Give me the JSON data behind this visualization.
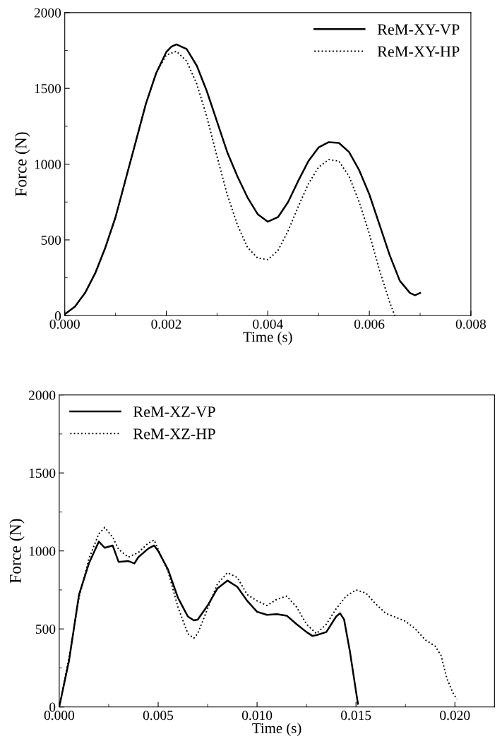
{
  "chart_data": [
    {
      "type": "line",
      "xlabel": "Time (s)",
      "ylabel": "Force (N)",
      "legend": "top right",
      "grid": false,
      "xlim": [
        0,
        0.008
      ],
      "ylim": [
        0,
        2000
      ],
      "xticks": [
        {
          "value": 0,
          "label": "0.000"
        },
        {
          "value": 0.002,
          "label": "0.002"
        },
        {
          "value": 0.004,
          "label": "0.004"
        },
        {
          "value": 0.006,
          "label": "0.006"
        },
        {
          "value": 0.008,
          "label": "0.008"
        }
      ],
      "yticks": [
        0,
        500,
        1000,
        1500,
        2000
      ],
      "series": [
        {
          "name": "ReM-XY-VP",
          "color": "#000000",
          "line_style": "solid",
          "x": [
            0,
            0.0002,
            0.0004,
            0.0006,
            0.0008,
            0.001,
            0.0012,
            0.0014,
            0.0016,
            0.0018,
            0.002,
            0.0021,
            0.0022,
            0.0024,
            0.0026,
            0.0028,
            0.003,
            0.0032,
            0.0034,
            0.0036,
            0.0038,
            0.004,
            0.0042,
            0.0044,
            0.0046,
            0.0048,
            0.005,
            0.0052,
            0.0054,
            0.0056,
            0.0058,
            0.006,
            0.0062,
            0.0064,
            0.0066,
            0.0068,
            0.0069,
            0.007
          ],
          "values": [
            10,
            60,
            150,
            280,
            450,
            650,
            900,
            1150,
            1400,
            1600,
            1740,
            1775,
            1790,
            1760,
            1650,
            1480,
            1280,
            1080,
            920,
            780,
            670,
            620,
            650,
            750,
            890,
            1020,
            1110,
            1145,
            1140,
            1080,
            960,
            800,
            600,
            400,
            230,
            150,
            135,
            150
          ]
        },
        {
          "name": "ReM-XY-HP",
          "color": "#000000",
          "line_style": "dotted",
          "x": [
            0,
            0.0002,
            0.0004,
            0.0006,
            0.0008,
            0.001,
            0.0012,
            0.0014,
            0.0016,
            0.0018,
            0.002,
            0.0022,
            0.0024,
            0.0026,
            0.0028,
            0.003,
            0.0032,
            0.0034,
            0.0036,
            0.0038,
            0.004,
            0.0042,
            0.0044,
            0.0046,
            0.0048,
            0.005,
            0.0052,
            0.0054,
            0.0056,
            0.0058,
            0.006,
            0.0062,
            0.0064,
            0.0065
          ],
          "values": [
            10,
            60,
            150,
            280,
            450,
            650,
            900,
            1150,
            1400,
            1600,
            1720,
            1745,
            1680,
            1530,
            1310,
            1050,
            800,
            600,
            450,
            380,
            370,
            430,
            560,
            720,
            870,
            980,
            1030,
            1020,
            920,
            750,
            540,
            300,
            90,
            0
          ]
        }
      ]
    },
    {
      "type": "line",
      "xlabel": "Time (s)",
      "ylabel": "Force (N)",
      "legend": "top left",
      "grid": false,
      "xlim": [
        0,
        0.022
      ],
      "ylim": [
        0,
        2000
      ],
      "xticks": [
        {
          "value": 0,
          "label": "0.000"
        },
        {
          "value": 0.005,
          "label": "0.005"
        },
        {
          "value": 0.01,
          "label": "0.010"
        },
        {
          "value": 0.015,
          "label": "0.015"
        },
        {
          "value": 0.02,
          "label": "0.020"
        }
      ],
      "yticks": [
        0,
        500,
        1000,
        1500,
        2000
      ],
      "series": [
        {
          "name": "ReM-XZ-VP",
          "color": "#000000",
          "line_style": "solid",
          "x": [
            0,
            0.0005,
            0.001,
            0.0015,
            0.002,
            0.0023,
            0.0027,
            0.003,
            0.0035,
            0.0038,
            0.004,
            0.0045,
            0.0048,
            0.005,
            0.0055,
            0.006,
            0.0065,
            0.0068,
            0.007,
            0.0075,
            0.008,
            0.0085,
            0.009,
            0.0095,
            0.01,
            0.0105,
            0.011,
            0.0115,
            0.012,
            0.0125,
            0.0128,
            0.013,
            0.0135,
            0.014,
            0.0142,
            0.0144,
            0.0147,
            0.015,
            0.0151
          ],
          "values": [
            0,
            300,
            720,
            920,
            1060,
            1020,
            1035,
            930,
            935,
            920,
            960,
            1015,
            1035,
            1000,
            880,
            700,
            580,
            555,
            560,
            650,
            760,
            810,
            770,
            680,
            610,
            590,
            595,
            585,
            530,
            480,
            455,
            460,
            480,
            580,
            600,
            560,
            350,
            100,
            20
          ]
        },
        {
          "name": "ReM-XZ-HP",
          "color": "#000000",
          "line_style": "dotted",
          "x": [
            0,
            0.0005,
            0.001,
            0.0015,
            0.002,
            0.0023,
            0.0027,
            0.003,
            0.0035,
            0.004,
            0.0045,
            0.0048,
            0.005,
            0.0055,
            0.006,
            0.0065,
            0.0068,
            0.007,
            0.0075,
            0.008,
            0.0085,
            0.009,
            0.0095,
            0.01,
            0.0105,
            0.011,
            0.0115,
            0.012,
            0.0125,
            0.013,
            0.0135,
            0.014,
            0.0145,
            0.015,
            0.0155,
            0.016,
            0.0165,
            0.017,
            0.0175,
            0.018,
            0.0185,
            0.019,
            0.0193,
            0.0196,
            0.0199,
            0.0201
          ],
          "values": [
            0,
            320,
            700,
            950,
            1110,
            1150,
            1090,
            1010,
            960,
            990,
            1050,
            1070,
            1010,
            870,
            640,
            470,
            440,
            470,
            630,
            790,
            860,
            830,
            720,
            680,
            650,
            690,
            710,
            640,
            530,
            470,
            530,
            630,
            710,
            750,
            730,
            660,
            600,
            575,
            550,
            500,
            430,
            390,
            330,
            180,
            90,
            50
          ]
        }
      ]
    }
  ]
}
